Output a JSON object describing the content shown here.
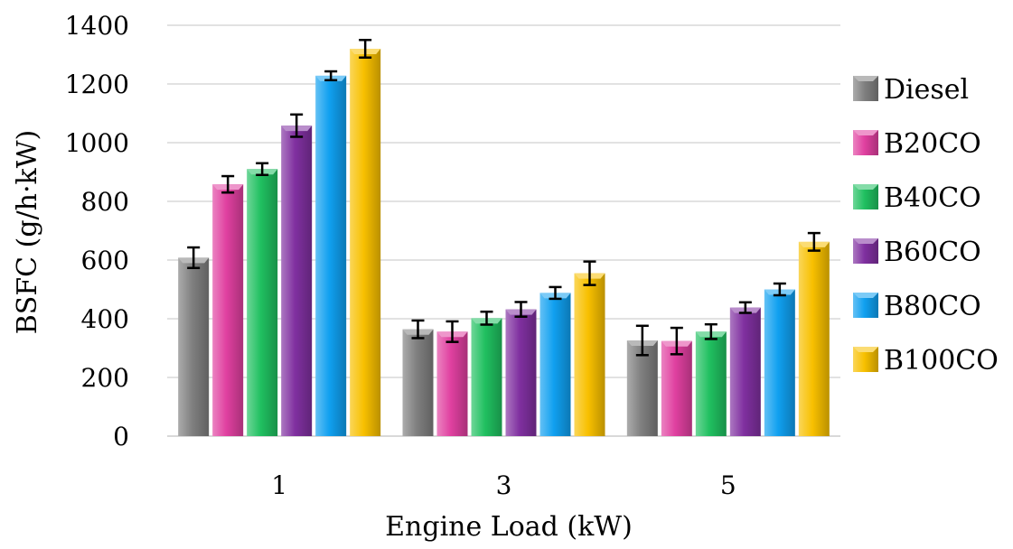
{
  "chart_data": {
    "type": "bar",
    "title": "",
    "xlabel": "Engine Load (kW)",
    "ylabel": "BSFC (g/h·kW)",
    "categories": [
      "1",
      "3",
      "5"
    ],
    "ylim": [
      0,
      1400
    ],
    "yticks": [
      "0",
      "200",
      "400",
      "600",
      "800",
      "1000",
      "1200",
      "1400"
    ],
    "grid": true,
    "legend_position": "right",
    "series": [
      {
        "name": "Diesel",
        "color": "#808080",
        "values": [
          608,
          364,
          326
        ],
        "errors": [
          35,
          30,
          50
        ]
      },
      {
        "name": "B20CO",
        "color": "#e040a0",
        "values": [
          858,
          356,
          324
        ],
        "errors": [
          28,
          35,
          45
        ]
      },
      {
        "name": "B40CO",
        "color": "#20c060",
        "values": [
          910,
          402,
          356
        ],
        "errors": [
          20,
          22,
          25
        ]
      },
      {
        "name": "B60CO",
        "color": "#8030a0",
        "values": [
          1058,
          432,
          438
        ],
        "errors": [
          38,
          25,
          18
        ]
      },
      {
        "name": "B80CO",
        "color": "#10a0f0",
        "values": [
          1228,
          488,
          500
        ],
        "errors": [
          15,
          20,
          20
        ]
      },
      {
        "name": "B100CO",
        "color": "#f8c000",
        "values": [
          1320,
          555,
          662
        ],
        "errors": [
          30,
          40,
          30
        ]
      }
    ]
  }
}
